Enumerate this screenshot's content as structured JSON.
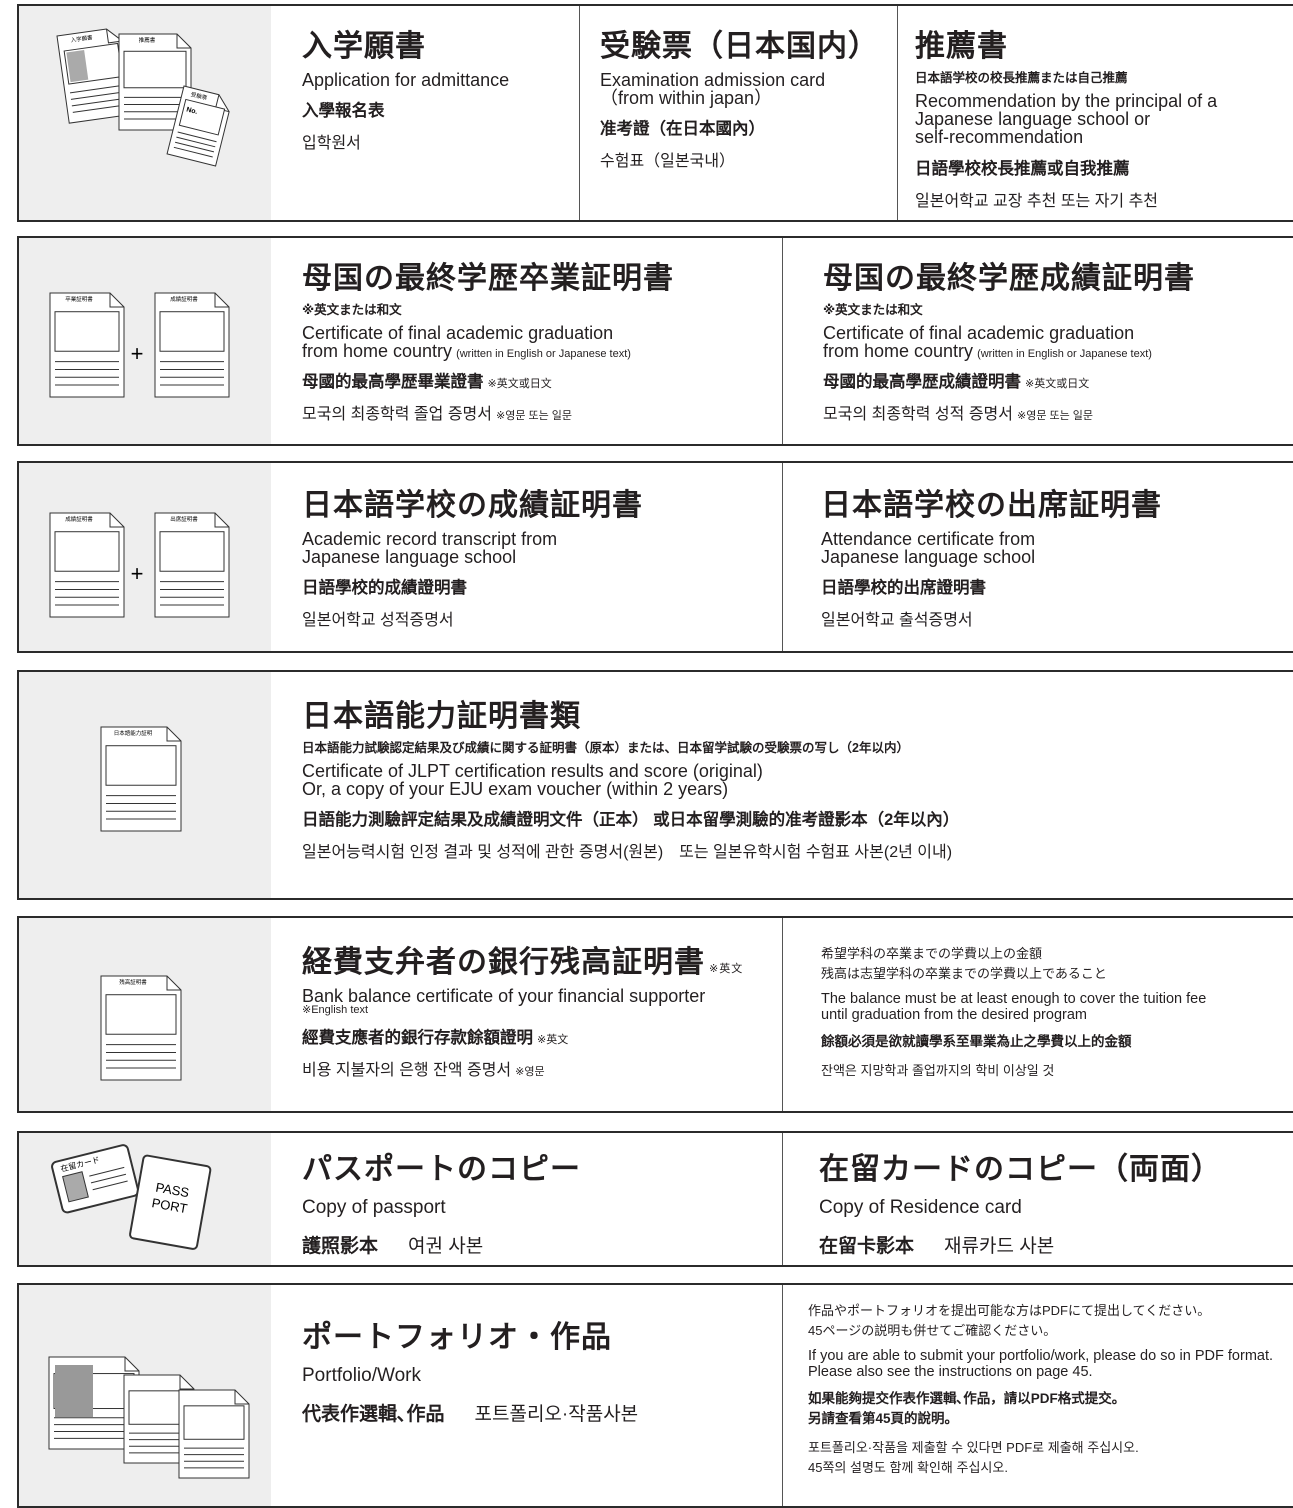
{
  "sections": [
    {
      "icon": {
        "labels": [
          "入学願書",
          "推薦書",
          "受験票",
          "No."
        ]
      },
      "columns": [
        {
          "title": "入学願書",
          "english": "Application for admittance",
          "chinese": "入學報名表",
          "korean": "입학원서"
        },
        {
          "title": "受験票（日本国内）",
          "english": "Examination admission card\n（from within japan）",
          "chinese": "准考證（在日本國內）",
          "korean": "수험표（일본국내）"
        },
        {
          "title": "推薦書",
          "note": "日本語学校の校長推薦または自己推薦",
          "english": "Recommendation by the principal of a\nJapanese language school or\nself-recommendation",
          "chinese": "日語學校校長推薦或自我推薦",
          "korean": "일본어학교 교장 추천 또는 자기 추천"
        }
      ]
    },
    {
      "icon": {
        "labels": [
          "卒業証明書",
          "成績証明書"
        ],
        "plus": "+"
      },
      "columns": [
        {
          "title": "母国の最終学歴卒業証明書",
          "note": "※英文または和文",
          "english": "Certificate of final academic graduation\nfrom home country",
          "english_note": "(written in English or Japanese text)",
          "chinese": "母國的最高學歴畢業證書",
          "chinese_note": "※英文或日文",
          "korean": "모국의 최종학력 졸업 증명서",
          "korean_note": "※영문 또는 일문"
        },
        {
          "title": "母国の最終学歴成績証明書",
          "note": "※英文または和文",
          "english": "Certificate of final academic graduation\nfrom home country",
          "english_note": "(written in English or Japanese text)",
          "chinese": "母國的最高學歴成績證明書",
          "chinese_note": "※英文或日文",
          "korean": "모국의 최종학력 성적 증명서",
          "korean_note": "※영문 또는 일문"
        }
      ]
    },
    {
      "icon": {
        "labels": [
          "成績証明書",
          "出席証明書"
        ],
        "plus": "+"
      },
      "columns": [
        {
          "title": "日本語学校の成績証明書",
          "english": "Academic record transcript from\nJapanese language school",
          "chinese": "日語學校的成績證明書",
          "korean": "일본어학교 성적증명서"
        },
        {
          "title": "日本語学校の出席証明書",
          "english": "Attendance certificate from\nJapanese language school",
          "chinese": "日語學校的出席證明書",
          "korean": "일본어학교 출석증명서"
        }
      ]
    },
    {
      "icon": {
        "labels": [
          "日本語能力証明"
        ]
      },
      "columns": [
        {
          "title": "日本語能力証明書類",
          "note": "日本語能力試験認定結果及び成績に関する証明書（原本）または、日本留学試験の受験票の写し（2年以内）",
          "english": "Certificate of JLPT certification results and score (original)\nOr, a copy of your EJU exam voucher (within 2 years)",
          "chinese": "日語能力測驗評定結果及成績證明文件（正本） 或日本留學測驗的准考證影本（2年以內）",
          "korean": "일본어능력시험 인정 결과 및 성적에 관한 증명서(원본)　또는 일본유학시험 수험표 사본(2년 이내)"
        }
      ]
    },
    {
      "icon": {
        "labels": [
          "残高証明書"
        ]
      },
      "columns": [
        {
          "title": "経費支弁者の銀行残高証明書",
          "title_note": "※英文",
          "english": "Bank balance certificate of your financial supporter",
          "english_note": "※English text",
          "chinese": "經費支應者的銀行存款餘額證明",
          "chinese_note": "※英文",
          "korean": "비용 지불자의 은행 잔액 증명서",
          "korean_note": "※영문"
        },
        {
          "japanese": "希望学科の卒業までの学費以上の金額\n残高は志望学科の卒業までの学費以上であること",
          "english": "The balance must be at least enough to cover the tuition fee\nuntil graduation from the desired program",
          "chinese": "餘額必須是欲就讀學系至畢業為止之學費以上的金額",
          "korean": "잔액은 지망학과 졸업까지의 학비 이상일 것"
        }
      ]
    },
    {
      "icon": {
        "labels": [
          "在留カード",
          "PASS",
          "PORT"
        ]
      },
      "columns": [
        {
          "title": "パスポートのコピー",
          "english": "Copy of passport",
          "chinese": "護照影本",
          "korean": "여권 사본"
        },
        {
          "title": "在留カードのコピー（両面）",
          "english": "Copy of Residence card",
          "chinese": "在留卡影本",
          "korean": "재류카드 사본"
        }
      ]
    },
    {
      "icon": {
        "labels": []
      },
      "columns": [
        {
          "title": "ポートフォリオ・作品",
          "english": "Portfolio/Work",
          "chinese": "代表作選輯､作品",
          "korean": "포트폴리오·작품사본"
        },
        {
          "japanese": "作品やポートフォリオを提出可能な方はPDFにて提出してください。\n45ページの説明も併せてご確認ください。",
          "english": "If you are able to submit your portfolio/work, please do so in PDF format.\nPlease also see the instructions on page 45.",
          "chinese": "如果能夠提交作表作選輯､作品，請以PDF格式提交。\n另請查看第45頁的說明。",
          "korean": "포트폴리오·작품을 제출할 수 있다면 PDF로 제출해 주십시오.\n45쪽의 설명도 함께 확인해 주십시오."
        }
      ]
    }
  ]
}
